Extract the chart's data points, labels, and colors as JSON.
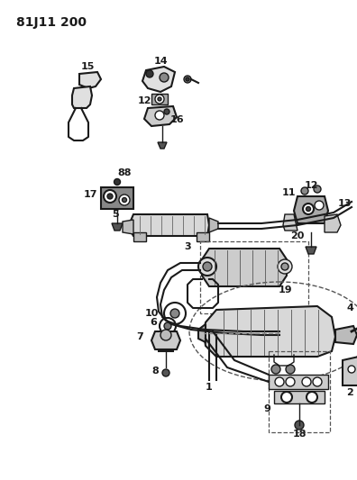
{
  "title": "81J11 200",
  "bg_color": "#ffffff",
  "lc": "#1a1a1a",
  "title_fontsize": 10,
  "label_fontsize": 7.5,
  "bold_label_fontsize": 8,
  "figsize": [
    3.96,
    5.33
  ],
  "dpi": 100
}
